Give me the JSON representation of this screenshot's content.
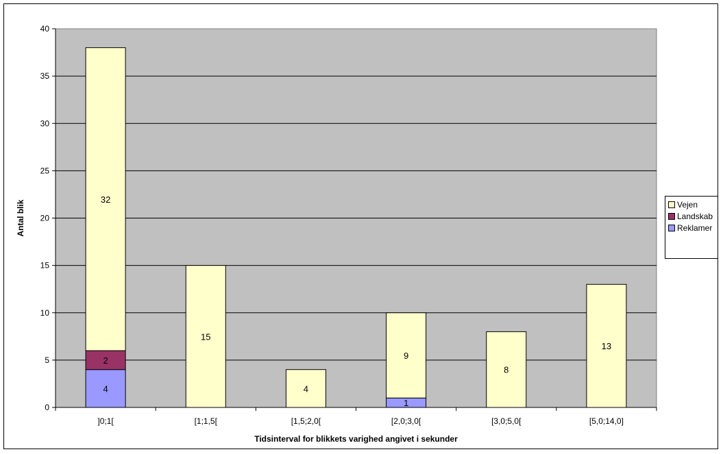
{
  "chart_data": {
    "type": "bar",
    "stacked": true,
    "categories": [
      "]0;1[",
      "[1;1,5[",
      "[1,5;2,0[",
      "[2,0;3,0[",
      "[3,0;5,0[",
      "[5,0;14,0]"
    ],
    "series": [
      {
        "name": "Reklamer",
        "values": [
          4,
          0,
          0,
          1,
          0,
          0
        ],
        "color": "#9999ff"
      },
      {
        "name": "Landskab",
        "values": [
          2,
          0,
          0,
          0,
          0,
          0
        ],
        "color": "#993366"
      },
      {
        "name": "Vejen",
        "values": [
          32,
          15,
          4,
          9,
          8,
          13
        ],
        "color": "#ffffcc"
      }
    ],
    "legend_order": [
      "Vejen",
      "Landskab",
      "Reklamer"
    ],
    "xlabel": "Tidsinterval for blikkets varighed angivet i sekunder",
    "ylabel": "Antal blik",
    "ylim": [
      0,
      40
    ],
    "yticks": [
      0,
      5,
      10,
      15,
      20,
      25,
      30,
      35,
      40
    ],
    "grid": true,
    "legend_position": "right",
    "plot_background": "#c0c0c0"
  }
}
